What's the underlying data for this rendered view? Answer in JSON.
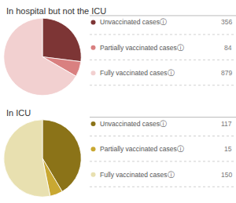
{
  "chart_data": [
    {
      "type": "pie",
      "title": "In hospital but not the ICU",
      "categories": [
        "Unvaccinated casesⓘ",
        "Partially vaccinated casesⓘ",
        "Fully vaccinated casesⓘ"
      ],
      "values": [
        356,
        84,
        879
      ],
      "colors": [
        "#7d3535",
        "#d98080",
        "#f2d0d0"
      ]
    },
    {
      "type": "pie",
      "title": "In ICU",
      "categories": [
        "Unvaccinated casesⓘ",
        "Partially vaccinated casesⓘ",
        "Fully vaccinated casesⓘ"
      ],
      "values": [
        117,
        15,
        150
      ],
      "colors": [
        "#8b7318",
        "#c9a832",
        "#e8e0b0"
      ]
    }
  ]
}
